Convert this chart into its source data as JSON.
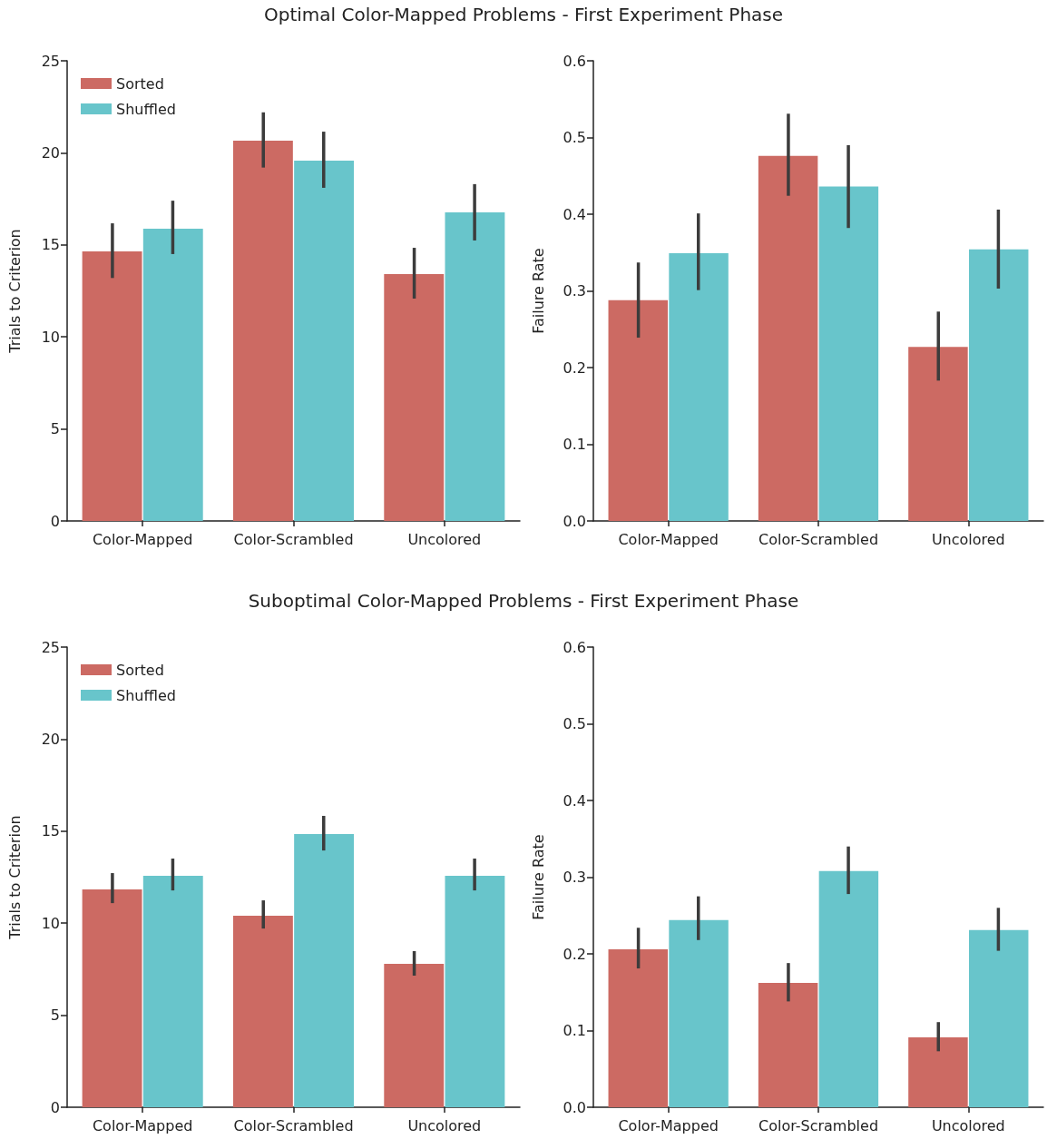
{
  "chart_data": [
    {
      "type": "bar",
      "title": "Optimal Color-Mapped Problems - First Experiment Phase",
      "ylabel": "Trials to Criterion",
      "categories": [
        "Color-Mapped",
        "Color-Scrambled",
        "Uncolored"
      ],
      "ylim": [
        0,
        25
      ],
      "yticks": [
        0,
        5,
        10,
        15,
        20,
        25
      ],
      "legend": "top left",
      "series": [
        {
          "name": "Sorted",
          "color": "#cc6a63",
          "values": [
            14.65,
            20.66,
            13.41
          ],
          "errors": [
            [
              13.2,
              16.17
            ],
            [
              19.2,
              22.2
            ],
            [
              12.08,
              14.84
            ]
          ]
        },
        {
          "name": "Shuffled",
          "color": "#68c5cb",
          "values": [
            15.88,
            19.58,
            16.77
          ],
          "errors": [
            [
              14.5,
              17.4
            ],
            [
              18.1,
              21.15
            ],
            [
              15.24,
              18.3
            ]
          ]
        }
      ]
    },
    {
      "type": "bar",
      "ylabel": "Failure Rate",
      "categories": [
        "Color-Mapped",
        "Color-Scrambled",
        "Uncolored"
      ],
      "ylim": [
        0,
        0.6
      ],
      "yticks": [
        {
          "value": 0,
          "label": "0.0"
        },
        0.1,
        0.2,
        0.3,
        0.4,
        0.5,
        0.6
      ],
      "series": [
        {
          "color": "#cc6a63",
          "values": [
            0.288,
            0.476,
            0.227
          ],
          "errors": [
            [
              0.239,
              0.337
            ],
            [
              0.424,
              0.531
            ],
            [
              0.183,
              0.273
            ]
          ]
        },
        {
          "color": "#68c5cb",
          "values": [
            0.349,
            0.436,
            0.354
          ],
          "errors": [
            [
              0.301,
              0.401
            ],
            [
              0.382,
              0.49
            ],
            [
              0.303,
              0.406
            ]
          ]
        }
      ]
    },
    {
      "type": "bar",
      "title": "Suboptimal Color-Mapped Problems - First Experiment Phase",
      "ylabel": "Trials to Criterion",
      "categories": [
        "Color-Mapped",
        "Color-Scrambled",
        "Uncolored"
      ],
      "ylim": [
        0,
        25
      ],
      "yticks": [
        0,
        5,
        10,
        15,
        20,
        25
      ],
      "legend": "top left",
      "series": [
        {
          "name": "Sorted",
          "color": "#cc6a63",
          "values": [
            11.83,
            10.4,
            7.79
          ],
          "errors": [
            [
              11.09,
              12.72
            ],
            [
              9.71,
              11.24
            ],
            [
              7.15,
              8.48
            ]
          ]
        },
        {
          "name": "Shuffled",
          "color": "#68c5cb",
          "values": [
            12.57,
            14.84,
            12.57
          ],
          "errors": [
            [
              11.78,
              13.51
            ],
            [
              13.95,
              15.83
            ],
            [
              11.78,
              13.51
            ]
          ]
        }
      ]
    },
    {
      "type": "bar",
      "ylabel": "Failure Rate",
      "categories": [
        "Color-Mapped",
        "Color-Scrambled",
        "Uncolored"
      ],
      "ylim": [
        0,
        0.6
      ],
      "yticks": [
        {
          "value": 0,
          "label": "0.0"
        },
        0.1,
        0.2,
        0.3,
        0.4,
        0.5,
        0.6
      ],
      "series": [
        {
          "color": "#cc6a63",
          "values": [
            0.206,
            0.162,
            0.091
          ],
          "errors": [
            [
              0.181,
              0.234
            ],
            [
              0.138,
              0.188
            ],
            [
              0.073,
              0.111
            ]
          ]
        },
        {
          "color": "#68c5cb",
          "values": [
            0.244,
            0.308,
            0.231
          ],
          "errors": [
            [
              0.218,
              0.275
            ],
            [
              0.278,
              0.34
            ],
            [
              0.204,
              0.26
            ]
          ]
        }
      ]
    }
  ]
}
